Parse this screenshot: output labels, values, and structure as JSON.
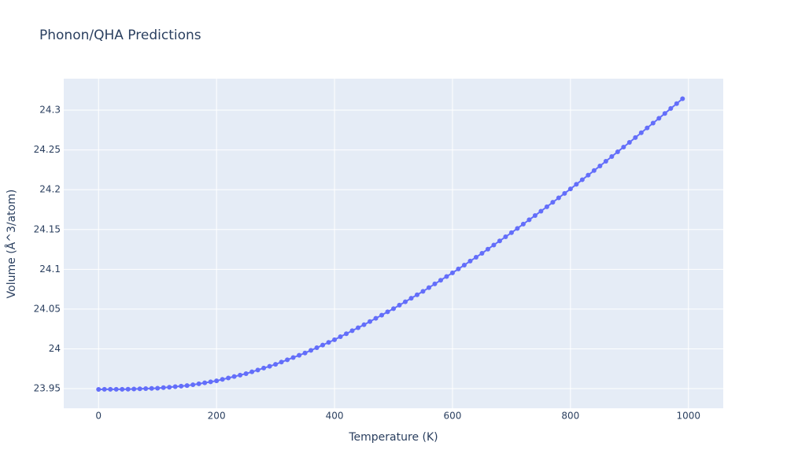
{
  "chart_data": {
    "type": "line",
    "title": "Phonon/QHA Predictions",
    "x_label": "Temperature (K)",
    "y_label": "Volume (Å^3/atom)",
    "x": [
      0,
      10,
      20,
      30,
      40,
      50,
      60,
      70,
      80,
      90,
      100,
      110,
      120,
      130,
      140,
      150,
      160,
      170,
      180,
      190,
      200,
      210,
      220,
      230,
      240,
      250,
      260,
      270,
      280,
      290,
      300,
      310,
      320,
      330,
      340,
      350,
      360,
      370,
      380,
      390,
      400,
      410,
      420,
      430,
      440,
      450,
      460,
      470,
      480,
      490,
      500,
      510,
      520,
      530,
      540,
      550,
      560,
      570,
      580,
      590,
      600,
      610,
      620,
      630,
      640,
      650,
      660,
      670,
      680,
      690,
      700,
      710,
      720,
      730,
      740,
      750,
      760,
      770,
      780,
      790,
      800,
      810,
      820,
      830,
      840,
      850,
      860,
      870,
      880,
      890,
      900,
      910,
      920,
      930,
      940,
      950,
      960,
      970,
      980,
      990
    ],
    "series": [
      {
        "color": "#636efa",
        "values": [
          23.949,
          23.9491,
          23.9491,
          23.9492,
          23.9492,
          23.9493,
          23.9495,
          23.9498,
          23.95,
          23.9503,
          23.9505,
          23.9512,
          23.9518,
          23.9525,
          23.9531,
          23.9538,
          23.9549,
          23.9561,
          23.9573,
          23.9585,
          23.9598,
          23.9616,
          23.9634,
          23.9652,
          23.967,
          23.9688,
          23.9711,
          23.9734,
          23.9758,
          23.9781,
          23.9805,
          23.9834,
          23.9862,
          23.9891,
          23.9919,
          23.9948,
          23.9981,
          24.0014,
          24.0048,
          24.0081,
          24.0115,
          24.0153,
          24.019,
          24.0228,
          24.0265,
          24.0303,
          24.0343,
          24.0384,
          24.0424,
          24.0465,
          24.0505,
          24.0549,
          24.0592,
          24.0636,
          24.0679,
          24.0723,
          24.0769,
          24.0816,
          24.0862,
          24.0909,
          24.0955,
          24.1004,
          24.1053,
          24.1103,
          24.1152,
          24.1201,
          24.1253,
          24.1305,
          24.1357,
          24.1408,
          24.146,
          24.1514,
          24.1568,
          24.1622,
          24.1676,
          24.173,
          24.1786,
          24.1842,
          24.1898,
          24.1954,
          24.201,
          24.2068,
          24.2126,
          24.2183,
          24.2241,
          24.2299,
          24.2358,
          24.2417,
          24.2477,
          24.2536,
          24.2595,
          24.2656,
          24.2716,
          24.2777,
          24.2837,
          24.2898,
          24.2959,
          24.3021,
          24.3082,
          24.3144
        ]
      }
    ],
    "xlim": [
      -59,
      1059
    ],
    "ylim": [
      23.9253,
      24.3396
    ],
    "xticks": [
      0,
      200,
      400,
      600,
      800,
      1000
    ],
    "yticks": [
      23.95,
      24,
      24.05,
      24.1,
      24.15,
      24.2,
      24.25,
      24.3
    ],
    "grid": true
  }
}
